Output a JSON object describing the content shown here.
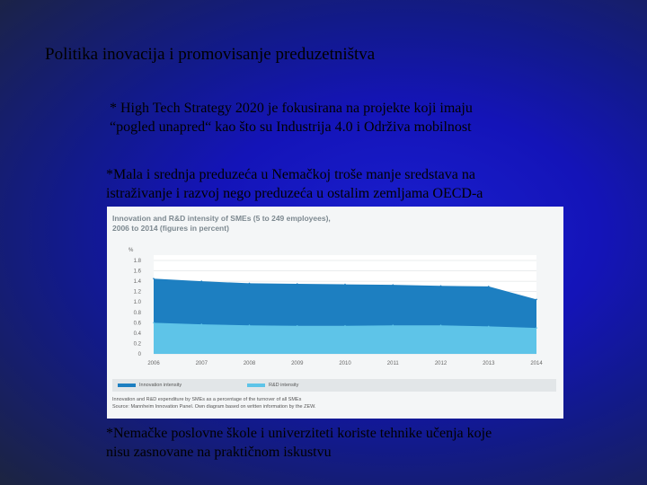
{
  "slide": {
    "title": "Politika inovacija i promovisanje preduzetništva",
    "bullet1_line1": "* High Tech Strategy 2020 je fokusirana na projekte koji imaju",
    "bullet1_line2": "“pogled  unapred“  kao što su Industrija 4.0 i Održiva mobilnost",
    "bullet2_line1": "*Mala i srednja preduzeća u Nemačkoj troše manje sredstava  na",
    "bullet2_line2": "istraživanje i razvoj  nego preduzeća u ostalim zemljama  OECD-a",
    "bullet3_line1": "*Nemačke poslovne škole i univerziteti koriste tehnike učenja koje",
    "bullet3_line2": "nisu zasnovane na praktičnom iskustvu"
  },
  "chart_data": {
    "type": "area",
    "title_line1": "Innovation and R&D intensity of SMEs (5 to 249 employees),",
    "title_line2": "2006 to 2014 (figures in percent)",
    "ylabel": "%",
    "ylim": [
      0,
      1.8
    ],
    "yticks": [
      "1.8",
      "1.6",
      "1.4",
      "1.2",
      "1.0",
      "0.8",
      "0.6",
      "0.4",
      "0.2",
      "0"
    ],
    "x": [
      "2006",
      "2007",
      "2008",
      "2009",
      "2010",
      "2011",
      "2012",
      "2013",
      "2014"
    ],
    "series": [
      {
        "name": "Innovation intensity",
        "values": [
          1.45,
          1.4,
          1.36,
          1.35,
          1.34,
          1.33,
          1.31,
          1.3,
          1.05
        ]
      },
      {
        "name": "R&D intensity",
        "values": [
          0.6,
          0.57,
          0.55,
          0.54,
          0.54,
          0.55,
          0.55,
          0.53,
          0.5
        ]
      }
    ],
    "colors": {
      "innovation": "#1d7fc1",
      "rd": "#5ec4e8"
    },
    "note1": "Innovation and R&D expenditure by SMEs as a percentage of the turnover of all SMEs",
    "note2": "Source: Mannheim Innovation Panel. Own diagram based on written information by the ZEW."
  }
}
